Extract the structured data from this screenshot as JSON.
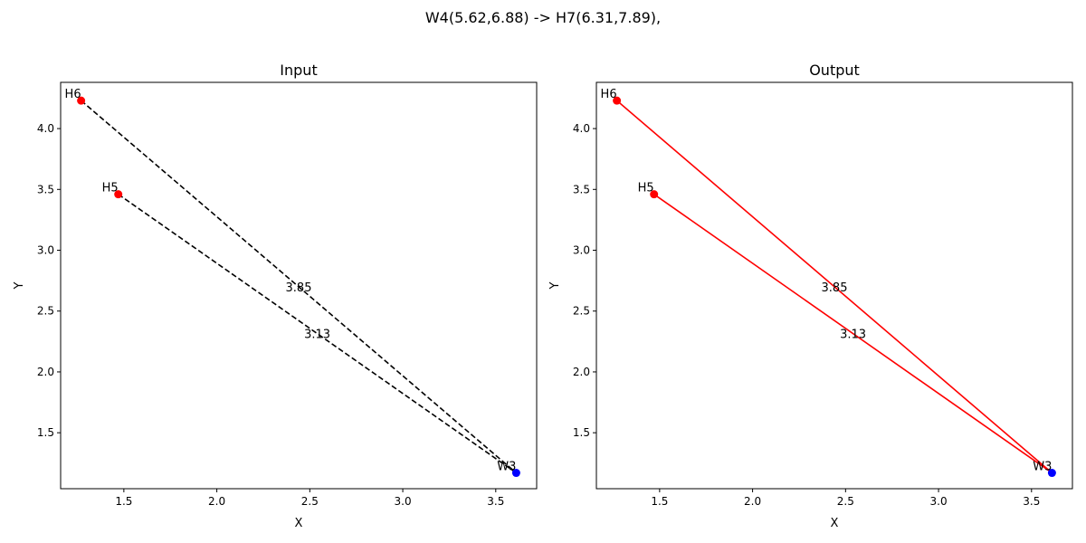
{
  "suptitle": "W4(5.62,6.88) -> H7(6.31,7.89),",
  "colors": {
    "red": "#ff0000",
    "blue": "#0000ff",
    "black": "#000000"
  },
  "chart_data": [
    {
      "type": "scatter",
      "title": "Input",
      "xlabel": "X",
      "ylabel": "Y",
      "xlim": [
        1.16,
        3.72
      ],
      "ylim": [
        1.04,
        4.38
      ],
      "xticks": [
        1.5,
        2.0,
        2.5,
        3.0,
        3.5
      ],
      "yticks": [
        1.5,
        2.0,
        2.5,
        3.0,
        3.5,
        4.0
      ],
      "grid": false,
      "line_style": "dashed",
      "line_color": "#000000",
      "points": [
        {
          "label": "H6",
          "x": 1.27,
          "y": 4.23,
          "color": "#ff0000"
        },
        {
          "label": "H5",
          "x": 1.47,
          "y": 3.46,
          "color": "#ff0000"
        },
        {
          "label": "W3",
          "x": 3.61,
          "y": 1.17,
          "color": "#0000ff"
        }
      ],
      "edges": [
        {
          "from": "H6",
          "to": "W3",
          "label": "3.85"
        },
        {
          "from": "H5",
          "to": "W3",
          "label": "3.13"
        }
      ]
    },
    {
      "type": "scatter",
      "title": "Output",
      "xlabel": "X",
      "ylabel": "Y",
      "xlim": [
        1.16,
        3.72
      ],
      "ylim": [
        1.04,
        4.38
      ],
      "xticks": [
        1.5,
        2.0,
        2.5,
        3.0,
        3.5
      ],
      "yticks": [
        1.5,
        2.0,
        2.5,
        3.0,
        3.5,
        4.0
      ],
      "grid": false,
      "line_style": "solid",
      "line_color": "#ff0000",
      "points": [
        {
          "label": "H6",
          "x": 1.27,
          "y": 4.23,
          "color": "#ff0000"
        },
        {
          "label": "H5",
          "x": 1.47,
          "y": 3.46,
          "color": "#ff0000"
        },
        {
          "label": "W3",
          "x": 3.61,
          "y": 1.17,
          "color": "#0000ff"
        }
      ],
      "edges": [
        {
          "from": "H6",
          "to": "W3",
          "label": "3.85"
        },
        {
          "from": "H5",
          "to": "W3",
          "label": "3.13"
        }
      ]
    }
  ]
}
